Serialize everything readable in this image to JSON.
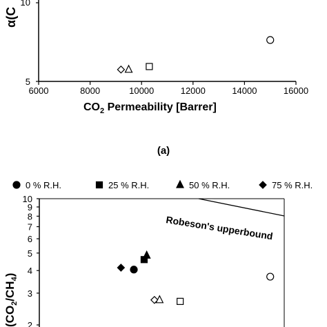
{
  "chart_data": [
    {
      "type": "scatter",
      "xlabel": "CO",
      "xlabel_sub": "2",
      "xlabel_rest": " Permeability [Barrer]",
      "ylabel_visible": "α(C",
      "xlim": [
        6000,
        16000
      ],
      "x_ticks": [
        "6000",
        "8000",
        "10000",
        "12000",
        "14000",
        "16000"
      ],
      "y_ticks": [
        "5",
        "10"
      ],
      "series": [
        {
          "marker": "diamond-open",
          "points": [
            [
              9200,
              5.55
            ]
          ]
        },
        {
          "marker": "triangle-open",
          "points": [
            [
              9500,
              5.55
            ]
          ]
        },
        {
          "marker": "square-open",
          "points": [
            [
              10300,
              5.7
            ]
          ]
        },
        {
          "marker": "circle-open",
          "points": [
            [
              15000,
              7.2
            ]
          ]
        }
      ],
      "caption": "(a)"
    },
    {
      "type": "scatter",
      "ylabel_visible": "(CO",
      "ylabel_sub1": "2",
      "ylabel_mid": "/CH",
      "ylabel_sub2": "4",
      "ylabel_end": ")",
      "ylim": [
        2,
        10
      ],
      "y_scale": "log",
      "y_ticks": [
        "2",
        "3",
        "4",
        "5",
        "6",
        "7",
        "8",
        "9",
        "10"
      ],
      "legend": [
        {
          "label": "0  % R.H.",
          "marker": "circle"
        },
        {
          "label": "25 % R.H.",
          "marker": "square"
        },
        {
          "label": "50 % R.H.",
          "marker": "triangle"
        },
        {
          "label": "75 % R.H.",
          "marker": "diamond"
        }
      ],
      "legend_placement": "top",
      "annotation": "Robeson's upperbound",
      "filled_points": [
        {
          "marker": "diamond",
          "x": 9200,
          "y": 4.15
        },
        {
          "marker": "circle",
          "x": 9700,
          "y": 4.05
        },
        {
          "marker": "square",
          "x": 10100,
          "y": 4.6
        },
        {
          "marker": "triangle",
          "x": 10200,
          "y": 4.85
        }
      ],
      "open_points": [
        {
          "marker": "diamond-open",
          "x": 10500,
          "y": 2.75
        },
        {
          "marker": "triangle-open",
          "x": 10700,
          "y": 2.75
        },
        {
          "marker": "square-open",
          "x": 11500,
          "y": 2.7
        },
        {
          "marker": "circle-open",
          "x": 15000,
          "y": 3.7
        }
      ]
    }
  ]
}
